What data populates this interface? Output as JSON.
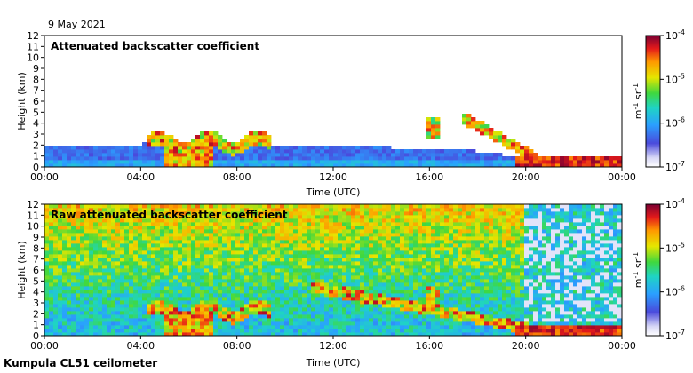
{
  "date": "9 May 2021",
  "footer": "Kumpula CL51 ceilometer",
  "chart_data": [
    {
      "type": "heatmap",
      "title": "Attenuated backscatter coefficient",
      "xlabel": "Time (UTC)",
      "ylabel": "Height (km)",
      "xlim": [
        0,
        24
      ],
      "ylim": [
        0,
        12
      ],
      "x_ticks": [
        "00:00",
        "04:00",
        "08:00",
        "12:00",
        "16:00",
        "20:00",
        "00:00"
      ],
      "y_ticks": [
        "0",
        "1",
        "2",
        "3",
        "4",
        "5",
        "6",
        "7",
        "8",
        "9",
        "10",
        "11",
        "12"
      ],
      "colorbar": {
        "label_unit": "m",
        "label_unit_exp": "-1",
        "label_unit2": "sr",
        "label_unit2_exp": "-1",
        "ticks": [
          {
            "base": "10",
            "exp": "-4",
            "value": 0.0001
          },
          {
            "base": "10",
            "exp": "-5",
            "value": 1e-05
          },
          {
            "base": "10",
            "exp": "-6",
            "value": 1e-06
          },
          {
            "base": "10",
            "exp": "-7",
            "value": 1e-07
          }
        ],
        "scale": "log"
      },
      "features": [
        {
          "name": "boundary layer",
          "t0": 0,
          "t1": 18.5,
          "h0": 0,
          "h1": 2.2,
          "level": 0.25
        },
        {
          "name": "cloud layer",
          "t0": 4.2,
          "t1": 9.5,
          "h0": 1.8,
          "h1": 3.2,
          "level": 0.9
        },
        {
          "name": "cloud layer",
          "t0": 15.8,
          "t1": 16.4,
          "h0": 2.5,
          "h1": 4.5,
          "level": 0.75
        },
        {
          "name": "descending cloud",
          "t0": 17.5,
          "t1": 20.5,
          "h0": 1.0,
          "h1": 4.0,
          "level": 0.8
        },
        {
          "name": "low cloud",
          "t0": 20,
          "t1": 24,
          "h0": 0.2,
          "h1": 1.0,
          "level": 0.95
        }
      ]
    },
    {
      "type": "heatmap",
      "title": "Raw attenuated backscatter coefficient",
      "xlabel": "Time (UTC)",
      "ylabel": "Height (km)",
      "xlim": [
        0,
        24
      ],
      "ylim": [
        0,
        12
      ],
      "x_ticks": [
        "00:00",
        "04:00",
        "08:00",
        "12:00",
        "16:00",
        "20:00",
        "00:00"
      ],
      "y_ticks": [
        "0",
        "1",
        "2",
        "3",
        "4",
        "5",
        "6",
        "7",
        "8",
        "9",
        "10",
        "11",
        "12"
      ],
      "colorbar": {
        "label_unit": "m",
        "label_unit_exp": "-1",
        "label_unit2": "sr",
        "label_unit2_exp": "-1",
        "ticks": [
          {
            "base": "10",
            "exp": "-4",
            "value": 0.0001
          },
          {
            "base": "10",
            "exp": "-5",
            "value": 1e-05
          },
          {
            "base": "10",
            "exp": "-6",
            "value": 1e-06
          },
          {
            "base": "10",
            "exp": "-7",
            "value": 1e-07
          }
        ],
        "scale": "log"
      },
      "features": [
        {
          "name": "noise background",
          "t0": 0,
          "t1": 24,
          "h0": 0,
          "h1": 12,
          "level": 0.45
        },
        {
          "name": "cloud layer",
          "t0": 4.2,
          "t1": 9.5,
          "h0": 1.8,
          "h1": 3.2,
          "level": 0.9
        },
        {
          "name": "descending layer",
          "t0": 11,
          "t1": 20,
          "h0": 1.2,
          "h1": 5.0,
          "level": 0.8
        },
        {
          "name": "low cloud",
          "t0": 20,
          "t1": 24,
          "h0": 0.2,
          "h1": 1.0,
          "level": 0.95
        }
      ]
    }
  ]
}
